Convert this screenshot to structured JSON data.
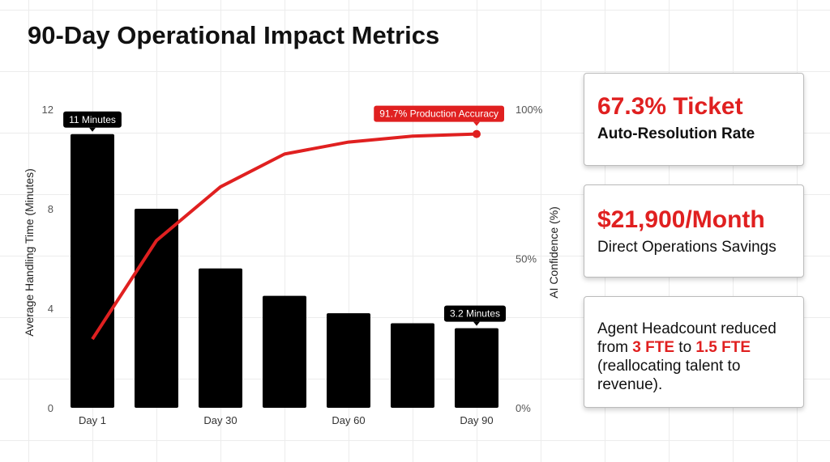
{
  "title": "90-Day Operational Impact Metrics",
  "chart_data": {
    "type": "bar+line",
    "categories": [
      "Day 1",
      "",
      "Day 30",
      "",
      "Day 60",
      "",
      "Day 90"
    ],
    "series": [
      {
        "type": "bar",
        "axis": "left",
        "values": [
          11,
          8,
          5.6,
          4.5,
          3.8,
          3.4,
          3.2
        ],
        "color": "#000000"
      },
      {
        "type": "line",
        "axis": "right",
        "values": [
          23,
          56,
          74,
          85,
          89,
          91,
          91.7
        ],
        "color": "#e02020"
      }
    ],
    "ylabel": "Average Handling Time (Minutes)",
    "ylim": [
      0,
      12
    ],
    "yticks": [
      "0",
      "4",
      "8",
      "12"
    ],
    "y2label": "AI Confidence (%)",
    "y2lim": [
      0,
      100
    ],
    "y2ticks": [
      "0%",
      "50%",
      "100%"
    ],
    "annotations": [
      "11 Minutes",
      "3.2 Minutes",
      "91.7% Production Accuracy"
    ],
    "grid": true
  },
  "cards": [
    {
      "headline": "67.3% Ticket",
      "sub": "Auto-Resolution Rate"
    },
    {
      "headline": "$21,900/Month",
      "sub": "Direct Operations Savings"
    },
    {
      "t1": "Agent Headcount reduced from ",
      "h1": "3 FTE",
      "t2": " to ",
      "h2": "1.5 FTE",
      "t3": " (reallocating talent to revenue)."
    }
  ]
}
